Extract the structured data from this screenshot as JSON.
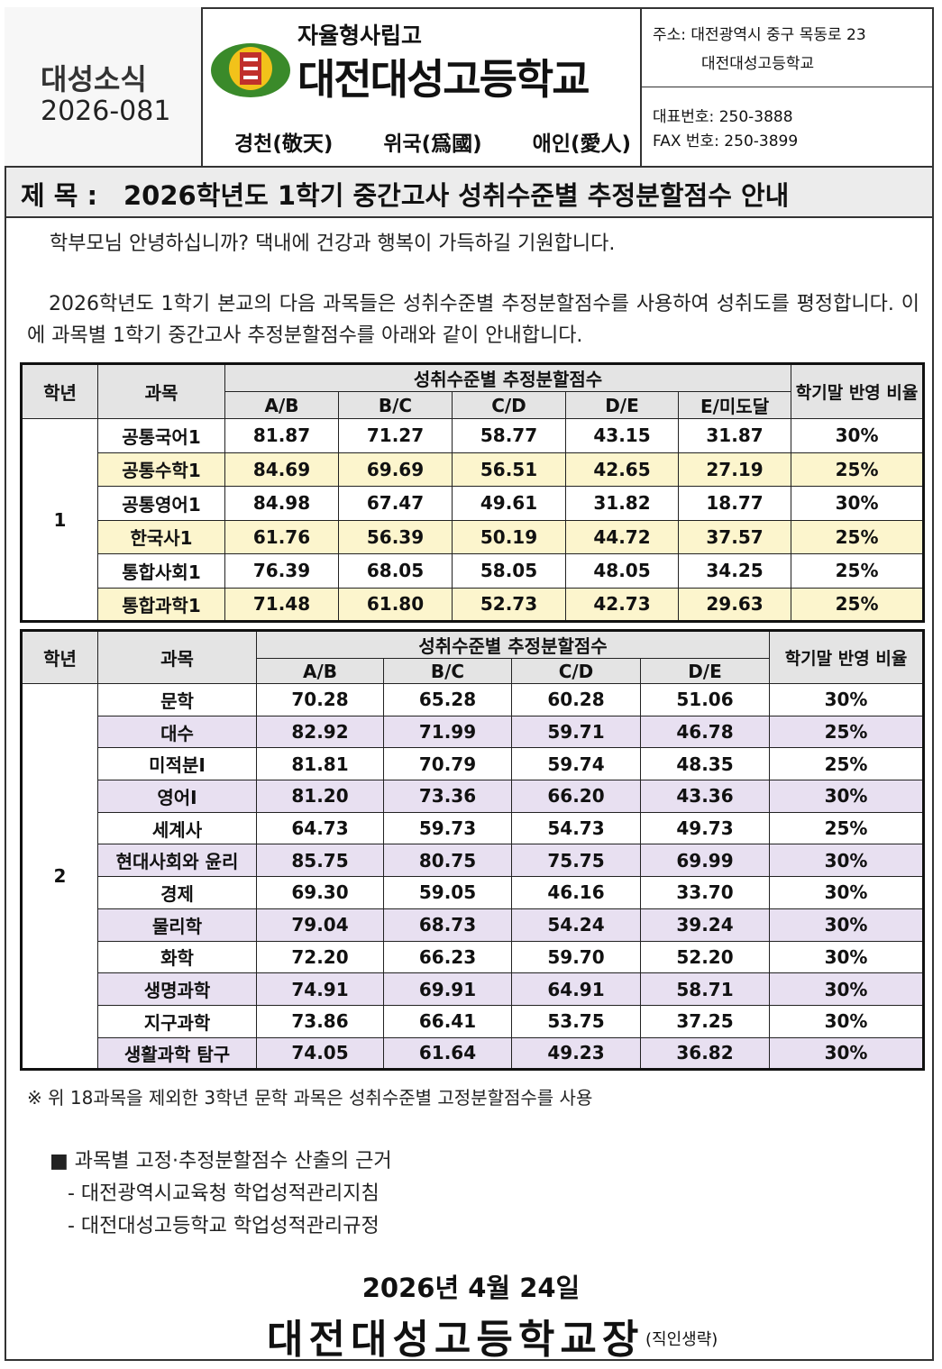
{
  "header": {
    "newsletter_label": "대성소식",
    "issue": "2026-081",
    "school_type": "자율형사립고",
    "school_name": "대전대성고등학교",
    "mottos": [
      "경천(敬天)",
      "위국(爲國)",
      "애인(愛人)"
    ],
    "address": "주소: 대전광역시 중구 목동로 23",
    "address_name": "대전대성고등학교",
    "phone": "대표번호: 250-3888",
    "fax": "FAX 번호: 250-3899"
  },
  "subject": {
    "label": "제 목 :",
    "text": "2026학년도 1학기 중간고사 성취수준별 추정분할점수 안내"
  },
  "greeting": "학부모님 안녕하십니까? 댁내에 건강과 행복이 가득하길 기원합니다.",
  "intro": "2026학년도 1학기 본교의 다음 과목들은 성취수준별 추정분할점수를 사용하여 성취도를 평정합니다. 이에 과목별 1학기 중간고사 추정분할점수를 아래와 같이 안내합니다.",
  "tables": [
    {
      "grade_header": "학년",
      "subject_header": "과목",
      "group_header": "성취수준별 추정분할점수",
      "columns": [
        "A/B",
        "B/C",
        "C/D",
        "D/E",
        "E/미도달"
      ],
      "ratio_header": "학기말 반영 비율",
      "grade": "1",
      "rows": [
        {
          "subject": "공통국어1",
          "scores": [
            "81.87",
            "71.27",
            "58.77",
            "43.15",
            "31.87"
          ],
          "ratio": "30%"
        },
        {
          "subject": "공통수학1",
          "scores": [
            "84.69",
            "69.69",
            "56.51",
            "42.65",
            "27.19"
          ],
          "ratio": "25%"
        },
        {
          "subject": "공통영어1",
          "scores": [
            "84.98",
            "67.47",
            "49.61",
            "31.82",
            "18.77"
          ],
          "ratio": "30%"
        },
        {
          "subject": "한국사1",
          "scores": [
            "61.76",
            "56.39",
            "50.19",
            "44.72",
            "37.57"
          ],
          "ratio": "25%"
        },
        {
          "subject": "통합사회1",
          "scores": [
            "76.39",
            "68.05",
            "58.05",
            "48.05",
            "34.25"
          ],
          "ratio": "25%"
        },
        {
          "subject": "통합과학1",
          "scores": [
            "71.48",
            "61.80",
            "52.73",
            "42.73",
            "29.63"
          ],
          "ratio": "25%"
        }
      ]
    },
    {
      "grade_header": "학년",
      "subject_header": "과목",
      "group_header": "성취수준별 추정분할점수",
      "columns": [
        "A/B",
        "B/C",
        "C/D",
        "D/E"
      ],
      "ratio_header": "학기말 반영 비율",
      "grade": "2",
      "rows": [
        {
          "subject": "문학",
          "scores": [
            "70.28",
            "65.28",
            "60.28",
            "51.06"
          ],
          "ratio": "30%"
        },
        {
          "subject": "대수",
          "scores": [
            "82.92",
            "71.99",
            "59.71",
            "46.78"
          ],
          "ratio": "25%"
        },
        {
          "subject": "미적분Ⅰ",
          "scores": [
            "81.81",
            "70.79",
            "59.74",
            "48.35"
          ],
          "ratio": "25%"
        },
        {
          "subject": "영어Ⅰ",
          "scores": [
            "81.20",
            "73.36",
            "66.20",
            "43.36"
          ],
          "ratio": "30%"
        },
        {
          "subject": "세계사",
          "scores": [
            "64.73",
            "59.73",
            "54.73",
            "49.73"
          ],
          "ratio": "25%"
        },
        {
          "subject": "현대사회와 윤리",
          "scores": [
            "85.75",
            "80.75",
            "75.75",
            "69.99"
          ],
          "ratio": "30%"
        },
        {
          "subject": "경제",
          "scores": [
            "69.30",
            "59.05",
            "46.16",
            "33.70"
          ],
          "ratio": "30%"
        },
        {
          "subject": "물리학",
          "scores": [
            "79.04",
            "68.73",
            "54.24",
            "39.24"
          ],
          "ratio": "30%"
        },
        {
          "subject": "화학",
          "scores": [
            "72.20",
            "66.23",
            "59.70",
            "52.20"
          ],
          "ratio": "30%"
        },
        {
          "subject": "생명과학",
          "scores": [
            "74.91",
            "69.91",
            "64.91",
            "58.71"
          ],
          "ratio": "30%"
        },
        {
          "subject": "지구과학",
          "scores": [
            "73.86",
            "66.41",
            "53.75",
            "37.25"
          ],
          "ratio": "30%"
        },
        {
          "subject": "생활과학 탐구",
          "scores": [
            "74.05",
            "61.64",
            "49.23",
            "36.82"
          ],
          "ratio": "30%"
        }
      ]
    }
  ],
  "note": "※ 위 18과목을 제외한 3학년 문학 과목은 성취수준별 고정분할점수를 사용",
  "basis": {
    "title": "■ 과목별 고정·추정분할점수 산출의 근거",
    "items": [
      "- 대전광역시교육청 학업성적관리지침",
      "- 대전대성고등학교 학업성적관리규정"
    ]
  },
  "date": "2026년 4월 24일",
  "signer": "대전대성고등학교장",
  "seal_note": "(직인생략)"
}
